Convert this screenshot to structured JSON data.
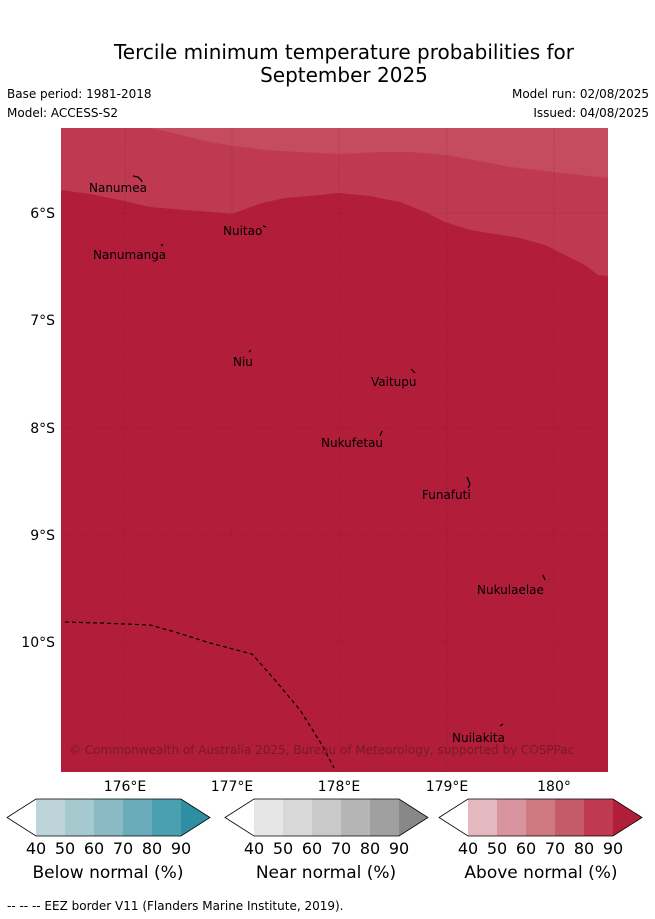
{
  "title_line1": "Tercile minimum temperature probabilities for",
  "title_line2": "September 2025",
  "base_period": "Base period: 1981-2018",
  "model": "Model: ACCESS-S2",
  "model_run": "Model run: 02/08/2025",
  "issued": "Issued: 04/08/2025",
  "map": {
    "lat_ticks": [
      "6°S",
      "7°S",
      "8°S",
      "9°S",
      "10°S"
    ],
    "lon_ticks": [
      "176°E",
      "177°E",
      "178°E",
      "179°E",
      "180°"
    ],
    "islands": [
      "Nanumea",
      "Nuitao",
      "Nanumanga",
      "Niu",
      "Vaitupu",
      "Nukufetau",
      "Funafuti",
      "Nukulaelae",
      "Nuilakita"
    ],
    "copyright": "© Commonwealth of Australia 2025, Bureau of Meteorology, supported by COSPPac",
    "colors": {
      "above_90": "#b21e39",
      "above_80": "#bf3a50",
      "above_70": "#c54c5d"
    }
  },
  "legends": [
    {
      "label": "Below normal (%)",
      "ticks": [
        "40",
        "50",
        "60",
        "70",
        "80",
        "90"
      ],
      "colors": [
        "#ffffff",
        "#bdd4da",
        "#a6c9cf",
        "#8bb9c4",
        "#6bacbb",
        "#4aa0b0",
        "#2e8fa3"
      ]
    },
    {
      "label": "Near normal (%)",
      "ticks": [
        "40",
        "50",
        "60",
        "70",
        "80",
        "90"
      ],
      "colors": [
        "#ffffff",
        "#e6e6e6",
        "#d8d8d8",
        "#c9c9c9",
        "#b5b5b5",
        "#a0a0a0",
        "#888888"
      ]
    },
    {
      "label": "Above normal (%)",
      "ticks": [
        "40",
        "50",
        "60",
        "70",
        "80",
        "90"
      ],
      "colors": [
        "#ffffff",
        "#e3b8bf",
        "#d8959f",
        "#cf7880",
        "#c55a68",
        "#bf3a50",
        "#b21e39"
      ]
    }
  ],
  "footer": "--  --  -- EEZ border V11 (Flanders Marine Institute, 2019)."
}
